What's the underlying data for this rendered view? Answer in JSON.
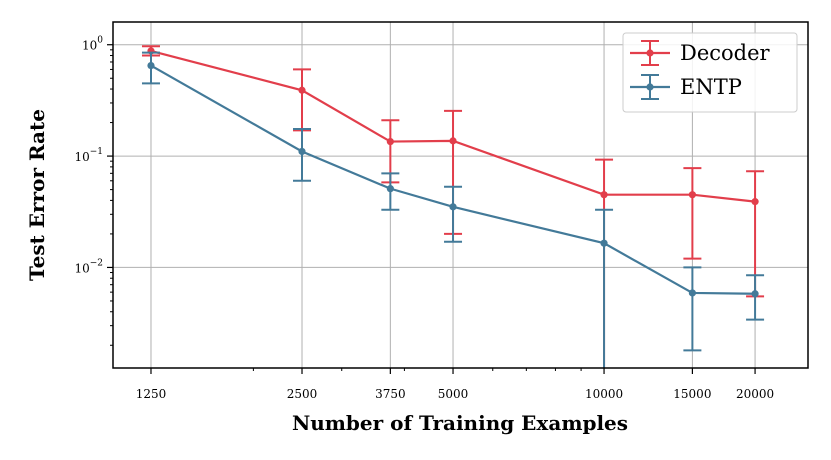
{
  "chart_data": {
    "type": "line",
    "xlabel": "Number of Training Examples",
    "ylabel": "Test Error Rate",
    "x_scale": "log",
    "y_scale": "log",
    "xlim": [
      1050,
      25500
    ],
    "ylim": [
      0.00125,
      1.6
    ],
    "grid": true,
    "legend_position": "top-right",
    "x_ticks": [
      {
        "value": 1250,
        "label": "1250"
      },
      {
        "value": 2500,
        "label": "2500"
      },
      {
        "value": 3750,
        "label": "3750"
      },
      {
        "value": 5000,
        "label": "5000"
      },
      {
        "value": 10000,
        "label": "10000"
      },
      {
        "value": 15000,
        "label": "15000"
      },
      {
        "value": 20000,
        "label": "20000"
      }
    ],
    "y_ticks": [
      {
        "value": 1,
        "base": "10",
        "exp": "0"
      },
      {
        "value": 0.1,
        "base": "10",
        "exp": "−1"
      },
      {
        "value": 0.01,
        "base": "10",
        "exp": "−2"
      }
    ],
    "series": [
      {
        "name": "Decoder",
        "color": "#e23e4b",
        "points": [
          {
            "x": 1250,
            "y": 0.88,
            "lo": 0.8,
            "hi": 0.97
          },
          {
            "x": 2500,
            "y": 0.39,
            "lo": 0.17,
            "hi": 0.6
          },
          {
            "x": 3750,
            "y": 0.135,
            "lo": 0.058,
            "hi": 0.21
          },
          {
            "x": 5000,
            "y": 0.137,
            "lo": 0.02,
            "hi": 0.255
          },
          {
            "x": 10000,
            "y": 0.045,
            "lo": 0.00125,
            "hi": 0.093
          },
          {
            "x": 15000,
            "y": 0.045,
            "lo": 0.012,
            "hi": 0.078
          },
          {
            "x": 20000,
            "y": 0.039,
            "lo": 0.0055,
            "hi": 0.073
          }
        ]
      },
      {
        "name": "ENTP",
        "color": "#437a99",
        "points": [
          {
            "x": 1250,
            "y": 0.65,
            "lo": 0.45,
            "hi": 0.85
          },
          {
            "x": 2500,
            "y": 0.11,
            "lo": 0.06,
            "hi": 0.175
          },
          {
            "x": 3750,
            "y": 0.051,
            "lo": 0.033,
            "hi": 0.07
          },
          {
            "x": 5000,
            "y": 0.035,
            "lo": 0.017,
            "hi": 0.053
          },
          {
            "x": 10000,
            "y": 0.0165,
            "lo": 0.00125,
            "hi": 0.033
          },
          {
            "x": 15000,
            "y": 0.0059,
            "lo": 0.0018,
            "hi": 0.01
          },
          {
            "x": 20000,
            "y": 0.0058,
            "lo": 0.0034,
            "hi": 0.0085
          }
        ]
      }
    ]
  }
}
